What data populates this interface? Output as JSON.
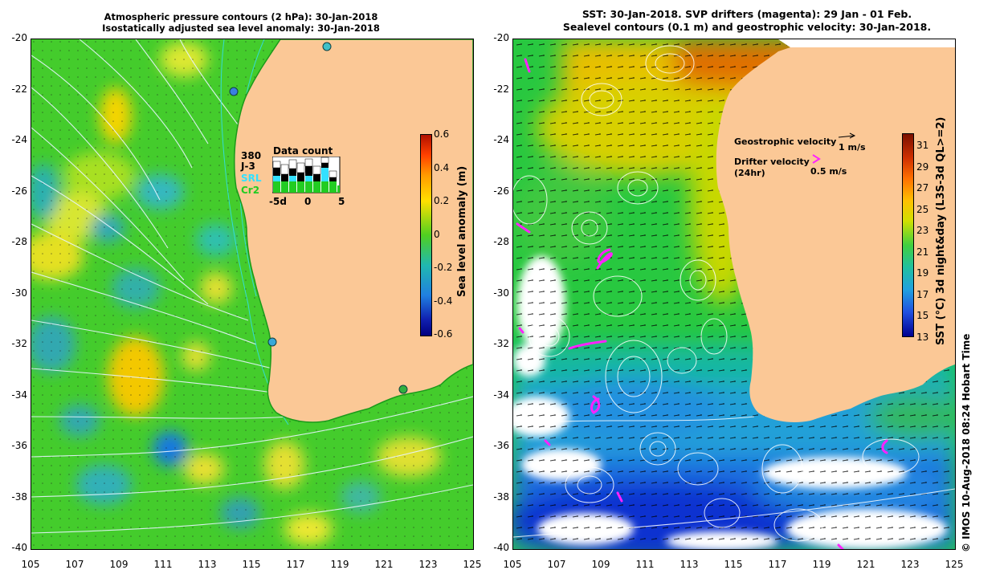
{
  "left_panel": {
    "title_line1": "Atmospheric pressure contours (2 hPa): 30-Jan-2018",
    "title_line2": "Isostatically adjusted sea level anomaly: 30-Jan-2018",
    "colorbar_label": "Sea level anomaly (m)",
    "colorbar_ticks": [
      "0.6",
      "0.4",
      "0.2",
      "0",
      "-0.2",
      "-0.4",
      "-0.6"
    ],
    "data_count": {
      "title": "Data count",
      "legend": [
        "380",
        "J-3",
        "SRL",
        "Cr2"
      ],
      "legend_colors": [
        "#000000",
        "#000000",
        "#33e0ff",
        "#22cc22"
      ],
      "axis_ticks": [
        "-5d",
        "0",
        "5"
      ]
    }
  },
  "right_panel": {
    "title_line1": "SST: 30-Jan-2018. SVP drifters (magenta): 29 Jan - 01 Feb.",
    "title_line2": "Sealevel contours (0.1 m) and geostrophic velocity: 30-Jan-2018.",
    "colorbar_label": "SST (°C) 3d night&day (L3S-3d QL>=2)",
    "colorbar_ticks": [
      "31",
      "29",
      "27",
      "25",
      "23",
      "21",
      "19",
      "17",
      "15",
      "13"
    ],
    "geostrophic_label": "Geostrophic velocity",
    "geostrophic_scale": "1 m/s",
    "drifter_label_1": "Drifter velocity",
    "drifter_label_2": "(24hr)",
    "drifter_scale": "0.5 m/s"
  },
  "y_ticks": [
    "-20",
    "-22",
    "-24",
    "-26",
    "-28",
    "-30",
    "-32",
    "-34",
    "-36",
    "-38",
    "-40"
  ],
  "x_ticks": [
    "105",
    "107",
    "109",
    "111",
    "113",
    "115",
    "117",
    "119",
    "121",
    "123",
    "125"
  ],
  "credit": "© IMOS 10-Aug-2018 08:24 Hobart Time",
  "colors": {
    "land": "#fbc896",
    "ocean_green": "#3ccc28",
    "drifter": "#ff22ff"
  }
}
